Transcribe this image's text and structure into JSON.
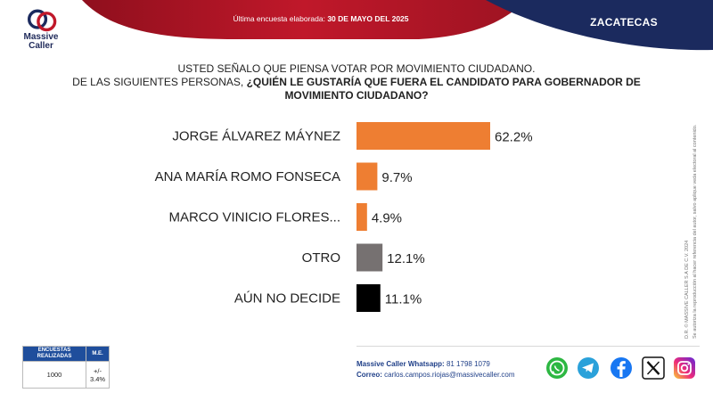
{
  "header": {
    "brand_line1": "Massive",
    "brand_line2": "Caller",
    "survey_date_label": "Última encuesta elaborada:",
    "survey_date_value": "30 DE MAYO DEL 2025",
    "region": "ZACATECAS"
  },
  "question": {
    "line1": "USTED SEÑALO QUE PIENSA VOTAR POR MOVIMIENTO CIUDADANO.",
    "line2_prefix": "DE LAS SIGUIENTES PERSONAS,",
    "line2_bold": "¿QUIÉN LE GUSTARÍA QUE FUERA EL CANDIDATO PARA GOBERNADOR DE MOVIMIENTO CIUDADANO?"
  },
  "colors": {
    "orange": "#ee7e32",
    "gray": "#767171",
    "black": "#000000",
    "header_red": "#c0182a",
    "header_navy": "#1b2a5e"
  },
  "chart_data": {
    "type": "bar",
    "orientation": "horizontal",
    "categories": [
      "JORGE ÁLVAREZ MÁYNEZ",
      "ANA MARÍA ROMO FONSECA",
      "MARCO VINICIO FLORES...",
      "OTRO",
      "AÚN NO DECIDE"
    ],
    "values": [
      62.2,
      9.7,
      4.9,
      12.1,
      11.1
    ],
    "value_labels": [
      "62.2%",
      "9.7%",
      "4.9%",
      "12.1%",
      "11.1%"
    ],
    "bar_colors": [
      "#ee7e32",
      "#ee7e32",
      "#ee7e32",
      "#767171",
      "#000000"
    ],
    "title": "",
    "xlabel": "",
    "ylabel": "",
    "xlim": [
      0,
      62.2
    ],
    "grid": false,
    "legend": "none"
  },
  "stats_table": {
    "col1_header": "ENCUESTAS REALIZADAS",
    "col2_header": "M.E.",
    "col1_value": "1000",
    "col2_value": "+/- 3.4%"
  },
  "footer": {
    "whatsapp_label": "Massive Caller Whatsapp:",
    "whatsapp_value": "81 1798 1079",
    "email_label": "Correo:",
    "email_value": "carlos.campos.riojas@massivecaller.com",
    "copyright_line1": "D.R. © MASSIVE CALLER S.A DE C.V. 2024",
    "copyright_line2": "Se autoriza la reproducción al hacer referencia del autor, salvo aplique veda electoral al contenido."
  },
  "social_icons": [
    "whatsapp-icon",
    "telegram-icon",
    "facebook-icon",
    "x-icon",
    "instagram-icon"
  ]
}
